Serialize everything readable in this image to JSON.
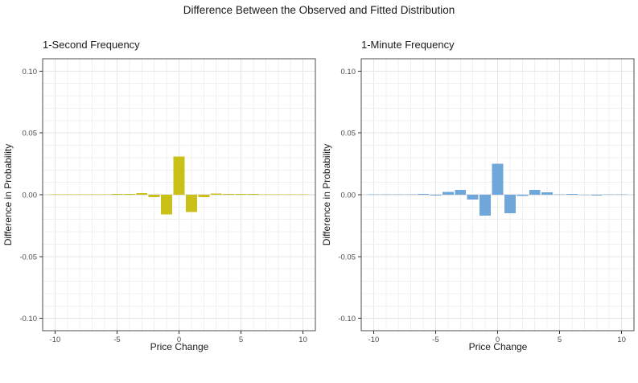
{
  "title": "Difference Between the Observed and Fitted Distribution",
  "colors": {
    "background": "#ffffff",
    "panel_border": "#4d4d4d",
    "grid_minor": "#f0f0f0",
    "grid_major": "#e6e6e6",
    "zero_line": "#d2d2d2",
    "tick_mark": "#333333",
    "tick_label": "#4d4d4d",
    "title_text": "#1a1a1a"
  },
  "chart_data": [
    {
      "type": "bar",
      "title": "1-Second Frequency",
      "xlabel": "Price Change",
      "ylabel": "Difference in Probability",
      "bar_color": "#c9c118",
      "legend": "none",
      "grid": "on",
      "xlim": [
        -11,
        11
      ],
      "ylim": [
        -0.11,
        0.11
      ],
      "x_minor_step": 1,
      "y_minor_step": 0.01,
      "xticks": [
        -10,
        -5,
        0,
        5,
        10
      ],
      "yticks": [
        {
          "value": 0.1,
          "label": "0.10"
        },
        {
          "value": 0.05,
          "label": "0.05"
        },
        {
          "value": 0.0,
          "label": "0.00"
        },
        {
          "value": -0.05,
          "label": "-0.05"
        },
        {
          "value": -0.1,
          "label": "-0.10"
        }
      ],
      "x": [
        -10,
        -9,
        -8,
        -7,
        -6,
        -5,
        -4,
        -3,
        -2,
        -1,
        0,
        1,
        2,
        3,
        4,
        5,
        6,
        7,
        8,
        9,
        10
      ],
      "values": [
        0.0001,
        0.0002,
        0.0003,
        0.0003,
        0.0004,
        0.0005,
        0.0008,
        0.0012,
        -0.002,
        -0.016,
        0.031,
        -0.014,
        -0.002,
        0.001,
        0.0008,
        0.0006,
        0.0005,
        0.0004,
        0.0003,
        0.0003,
        0.0002
      ]
    },
    {
      "type": "bar",
      "title": "1-Minute Frequency",
      "xlabel": "Price Change",
      "ylabel": "Difference in Probability",
      "bar_color": "#6fa7da",
      "legend": "none",
      "grid": "on",
      "xlim": [
        -11,
        11
      ],
      "ylim": [
        -0.11,
        0.11
      ],
      "x_minor_step": 1,
      "y_minor_step": 0.01,
      "xticks": [
        -10,
        -5,
        0,
        5,
        10
      ],
      "yticks": [
        {
          "value": 0.1,
          "label": "0.10"
        },
        {
          "value": 0.05,
          "label": "0.05"
        },
        {
          "value": 0.0,
          "label": "0.00"
        },
        {
          "value": -0.05,
          "label": "-0.05"
        },
        {
          "value": -0.1,
          "label": "-0.10"
        }
      ],
      "x": [
        -10,
        -9,
        -8,
        -7,
        -6,
        -5,
        -4,
        -3,
        -2,
        -1,
        0,
        1,
        2,
        3,
        4,
        5,
        6,
        7,
        8,
        9,
        10
      ],
      "values": [
        0.0002,
        0.0003,
        0.0003,
        0.0002,
        0.0008,
        -0.0008,
        0.0024,
        0.004,
        -0.004,
        -0.017,
        0.025,
        -0.015,
        -0.001,
        0.004,
        0.002,
        0.0001,
        0.0006,
        -0.0002,
        -0.0006,
        0.0002,
        0.0002
      ]
    }
  ]
}
